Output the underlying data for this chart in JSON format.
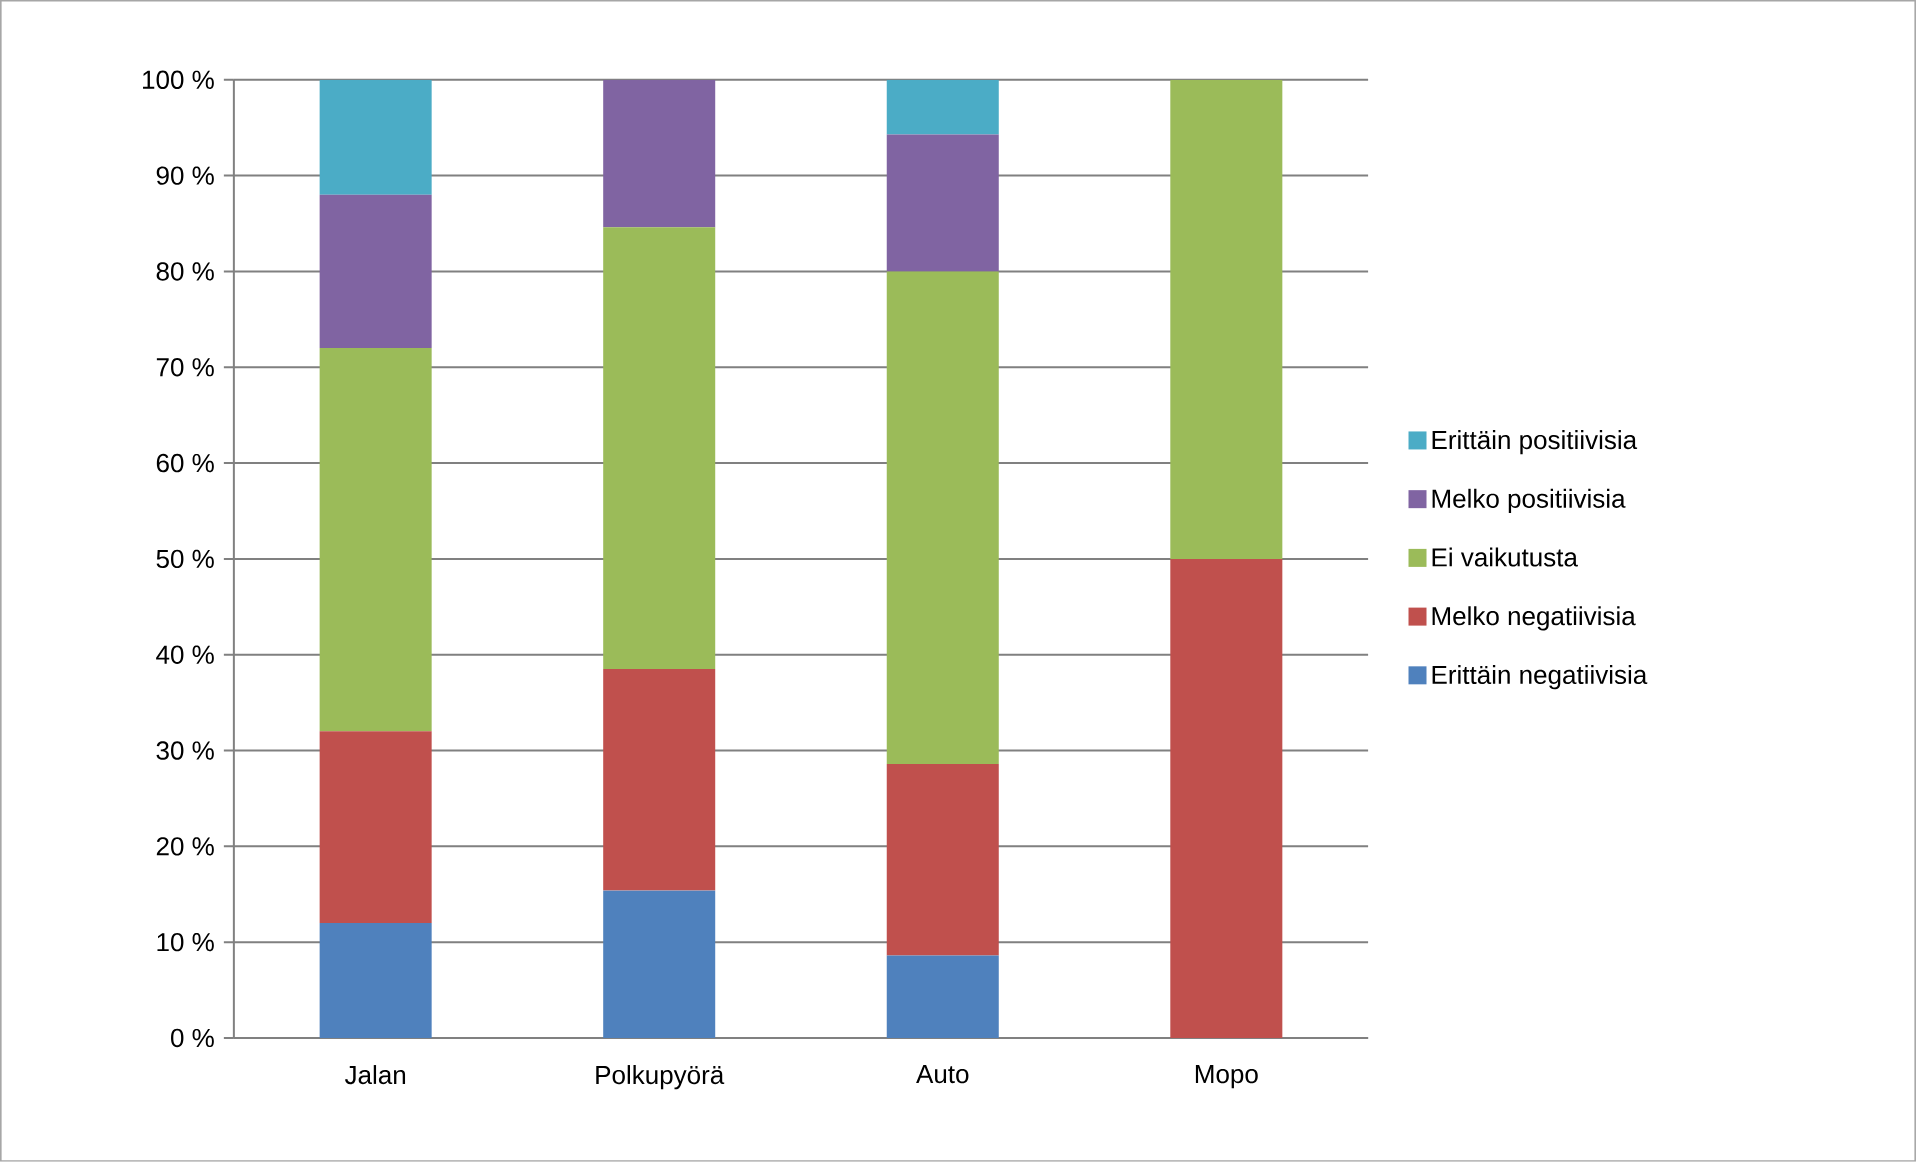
{
  "chart_data": {
    "type": "bar",
    "stacked": true,
    "categories": [
      "Jalan",
      "Polkupyörä",
      "Auto",
      "Mopo"
    ],
    "series": [
      {
        "name": "Erittäin negatiivisia",
        "color": "#4f81bd",
        "values": [
          12,
          15.4,
          8.6,
          0
        ]
      },
      {
        "name": "Melko negatiivisia",
        "color": "#c0504d",
        "values": [
          20,
          23.1,
          20,
          50
        ]
      },
      {
        "name": "Ei vaikutusta",
        "color": "#9bbb59",
        "values": [
          40,
          46.1,
          51.4,
          50
        ]
      },
      {
        "name": "Melko positiivisia",
        "color": "#8064a2",
        "values": [
          16,
          15.4,
          14.3,
          0
        ]
      },
      {
        "name": "Erittäin positiivisia",
        "color": "#4bacc6",
        "values": [
          12,
          0,
          5.7,
          0
        ]
      }
    ],
    "ylim": [
      0,
      100
    ],
    "yticks": [
      {
        "value": 0,
        "label": "0 %"
      },
      {
        "value": 10,
        "label": "10 %"
      },
      {
        "value": 20,
        "label": "20 %"
      },
      {
        "value": 30,
        "label": "30 %"
      },
      {
        "value": 40,
        "label": "40 %"
      },
      {
        "value": 50,
        "label": "50 %"
      },
      {
        "value": 60,
        "label": "60 %"
      },
      {
        "value": 70,
        "label": "70 %"
      },
      {
        "value": 80,
        "label": "80 %"
      },
      {
        "value": 90,
        "label": "90 %"
      },
      {
        "value": 100,
        "label": "100 %"
      }
    ],
    "grid": "y",
    "legend": "right"
  }
}
